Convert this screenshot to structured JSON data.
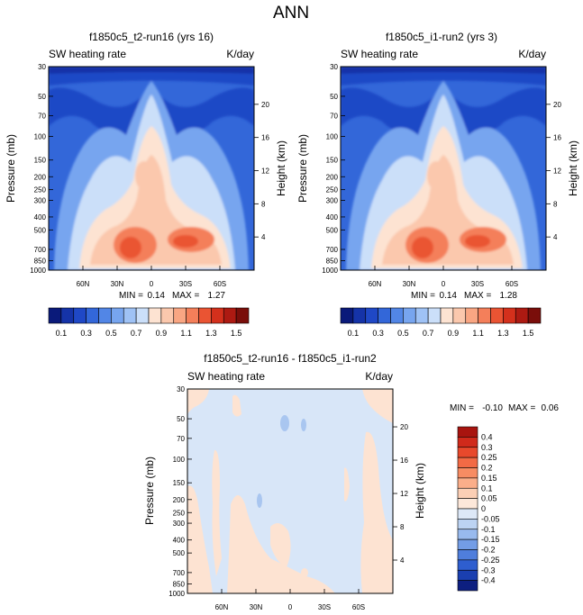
{
  "main_title": "ANN",
  "chart_data": [
    {
      "type": "heatmap",
      "title": "f1850c5_t2-run16 (yrs 16)",
      "left_string": "SW heating rate",
      "right_string": "K/day",
      "ylabel": "Pressure (mb)",
      "ylabel_right": "Height (km)",
      "x_ticks": [
        "60N",
        "30N",
        "0",
        "30S",
        "60S"
      ],
      "x_values": [
        60,
        30,
        0,
        -30,
        -60
      ],
      "xlim": [
        90,
        -90
      ],
      "p_ticks": [
        "30",
        "50",
        "70",
        "100",
        "150",
        "200",
        "250",
        "300",
        "400",
        "500",
        "700",
        "850",
        "1000"
      ],
      "p_values": [
        30,
        50,
        70,
        100,
        150,
        200,
        250,
        300,
        400,
        500,
        700,
        850,
        1000
      ],
      "plim": [
        30,
        1000
      ],
      "height_ticks": [
        "20",
        "16",
        "12",
        "8",
        "4"
      ],
      "height_values": [
        20,
        16,
        12,
        8,
        4
      ],
      "min_label": "MIN =",
      "min_value": "0.14",
      "max_label": "MAX =",
      "max_value": "1.27",
      "min": 0.14,
      "max": 1.27
    },
    {
      "type": "heatmap",
      "title": "f1850c5_i1-run2 (yrs 3)",
      "left_string": "SW heating rate",
      "right_string": "K/day",
      "ylabel": "Pressure (mb)",
      "ylabel_right": "Height (km)",
      "x_ticks": [
        "60N",
        "30N",
        "0",
        "30S",
        "60S"
      ],
      "x_values": [
        60,
        30,
        0,
        -30,
        -60
      ],
      "xlim": [
        90,
        -90
      ],
      "p_ticks": [
        "30",
        "50",
        "70",
        "100",
        "150",
        "200",
        "250",
        "300",
        "400",
        "500",
        "700",
        "850",
        "1000"
      ],
      "p_values": [
        30,
        50,
        70,
        100,
        150,
        200,
        250,
        300,
        400,
        500,
        700,
        850,
        1000
      ],
      "plim": [
        30,
        1000
      ],
      "height_ticks": [
        "20",
        "16",
        "12",
        "8",
        "4"
      ],
      "height_values": [
        20,
        16,
        12,
        8,
        4
      ],
      "min_label": "MIN =",
      "min_value": "0.14",
      "max_label": "MAX =",
      "max_value": "1.28",
      "min": 0.14,
      "max": 1.28
    },
    {
      "type": "heatmap",
      "title": "f1850c5_t2-run16 - f1850c5_i1-run2",
      "left_string": "SW heating rate",
      "right_string": "K/day",
      "ylabel": "Pressure (mb)",
      "ylabel_right": "Height (km)",
      "x_ticks": [
        "60N",
        "30N",
        "0",
        "30S",
        "60S"
      ],
      "x_values": [
        60,
        30,
        0,
        -30,
        -60
      ],
      "xlim": [
        90,
        -90
      ],
      "p_ticks": [
        "30",
        "50",
        "70",
        "100",
        "150",
        "200",
        "250",
        "300",
        "400",
        "500",
        "700",
        "850",
        "1000"
      ],
      "p_values": [
        30,
        50,
        70,
        100,
        150,
        200,
        250,
        300,
        400,
        500,
        700,
        850,
        1000
      ],
      "plim": [
        30,
        1000
      ],
      "height_ticks": [
        "20",
        "16",
        "12",
        "8",
        "4"
      ],
      "height_values": [
        20,
        16,
        12,
        8,
        4
      ],
      "min_label": "MIN =",
      "min_value": "-0.10",
      "max_label": "MAX =",
      "max_value": "0.06",
      "min": -0.1,
      "max": 0.06
    }
  ],
  "colorbar_main": {
    "labels": [
      "0.1",
      "0.3",
      "0.5",
      "0.7",
      "0.9",
      "1.1",
      "1.3",
      "1.5"
    ],
    "colors": [
      "#0a1a7a",
      "#1533a8",
      "#1f48c6",
      "#3367d9",
      "#5286e6",
      "#77a5ef",
      "#9fc2f5",
      "#cbdff9",
      "#fde3d2",
      "#fbc8ad",
      "#f9a683",
      "#f47f5a",
      "#ea5433",
      "#d4301c",
      "#ad1a12",
      "#7a0e0a"
    ]
  },
  "colorbar_diff": {
    "labels": [
      "0.4",
      "0.3",
      "0.25",
      "0.2",
      "0.15",
      "0.1",
      "0.05",
      "0",
      "-0.05",
      "-0.1",
      "-0.15",
      "-0.2",
      "-0.25",
      "-0.3",
      "-0.4"
    ],
    "colors": [
      "#a8140f",
      "#d02a1b",
      "#e8492c",
      "#f26a45",
      "#f78c63",
      "#fbae8a",
      "#fccfb5",
      "#fde8da",
      "#dde8f7",
      "#bcd3f3",
      "#98baee",
      "#739de6",
      "#4f7edc",
      "#2e5ecf",
      "#1a3fb0",
      "#0d1f80"
    ]
  },
  "field_colors": {
    "stratosphere": "#1533a8",
    "upper_band": "#1f48c6",
    "mid_blue": "#3367d9",
    "light_blue": "#77a5ef",
    "pale_blue": "#cbdff9",
    "peach": "#fde3d2",
    "salmon": "#fbc8ad",
    "orange": "#f47f5a",
    "red": "#ea5433",
    "diff_background": "#d8e6f8",
    "diff_positive": "#fde3d2",
    "diff_negative": "#a9c6f0"
  }
}
